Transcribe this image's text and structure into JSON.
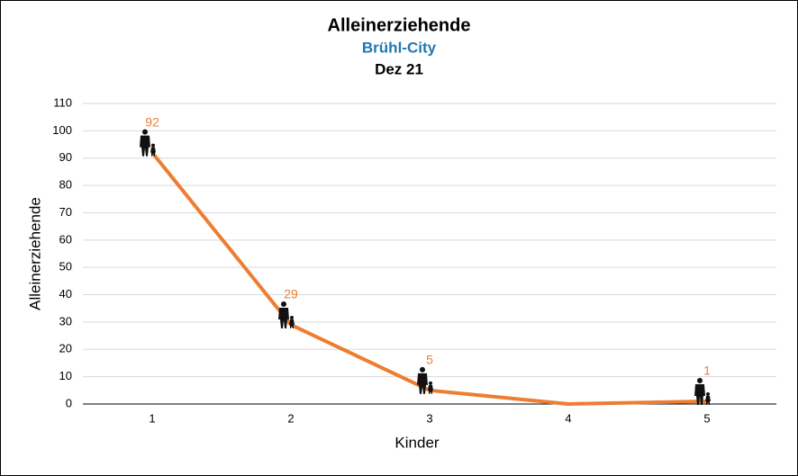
{
  "chart_data": {
    "type": "line",
    "title": "Alleinerziehende",
    "subtitle": "Brühl-City",
    "date": "Dez 21",
    "x_label": "Kinder",
    "y_label": "Alleinerziehende",
    "categories": [
      "1",
      "2",
      "3",
      "4",
      "5"
    ],
    "series": [
      {
        "name": "Alleinerziehende",
        "color": "#ed7d31",
        "values": [
          92,
          29,
          5,
          0,
          1
        ]
      }
    ],
    "ylim": [
      0,
      110
    ],
    "yticks": [
      0,
      10,
      20,
      30,
      40,
      50,
      60,
      70,
      80,
      90,
      100,
      110
    ],
    "grid": true
  }
}
